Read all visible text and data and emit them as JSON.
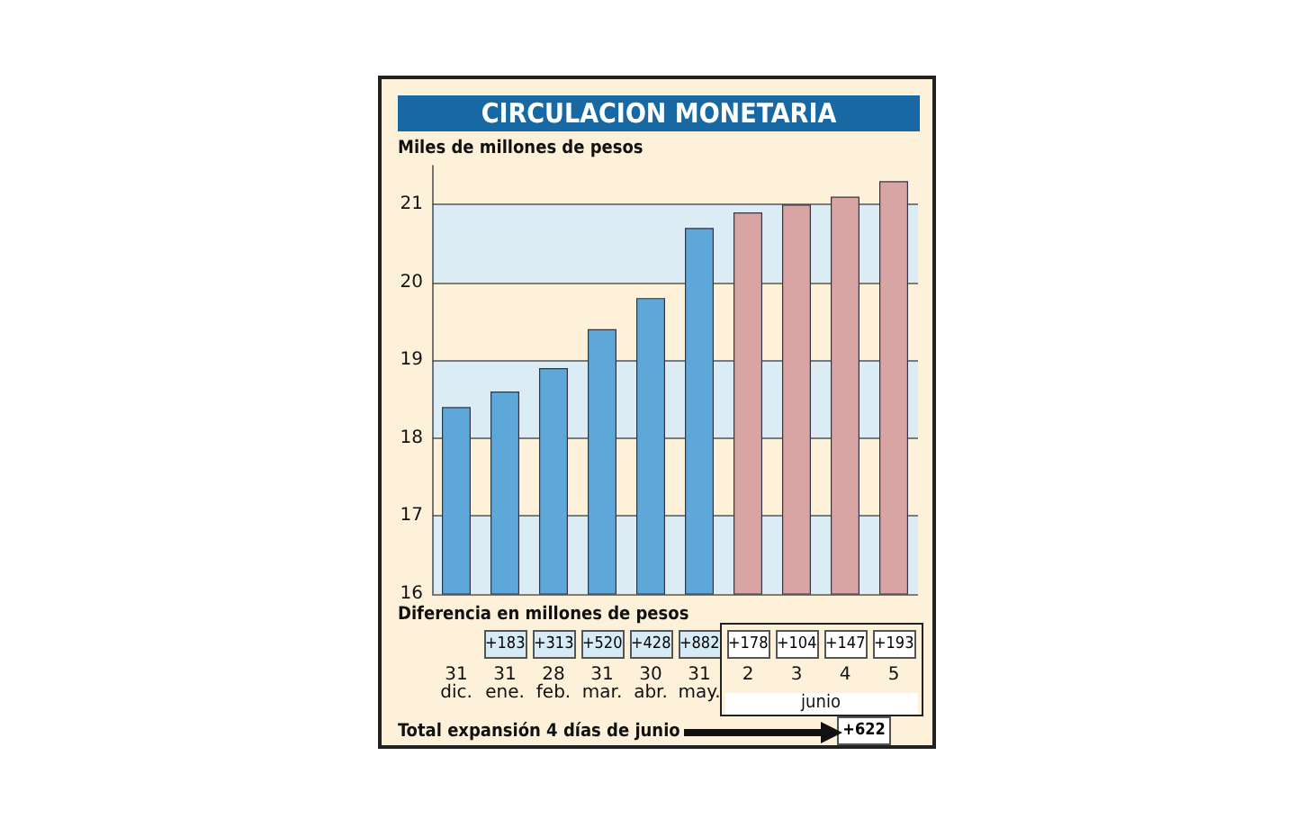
{
  "chart_data": {
    "type": "bar",
    "title": "CIRCULACION MONETARIA",
    "ylabel": "Miles de millones de pesos",
    "categories": [
      "31 dic.",
      "31 ene.",
      "28 feb.",
      "31 mar.",
      "30 abr.",
      "31 may.",
      "2",
      "3",
      "4",
      "5"
    ],
    "values": [
      18.4,
      18.6,
      18.9,
      19.4,
      19.8,
      20.7,
      20.9,
      21.0,
      21.1,
      21.3
    ],
    "colors": [
      "#5ea7d9",
      "#5ea7d9",
      "#5ea7d9",
      "#5ea7d9",
      "#5ea7d9",
      "#5ea7d9",
      "#d8a4a4",
      "#d8a4a4",
      "#d8a4a4",
      "#d8a4a4"
    ],
    "ylim": [
      16,
      21.5
    ],
    "yticks": [
      16,
      17,
      18,
      19,
      20,
      21
    ],
    "grid": "y",
    "annotations": [
      "Diferencia en millones de pesos",
      "+183",
      "+313",
      "+520",
      "+428",
      "+882",
      "+178",
      "+104",
      "+147",
      "+193",
      "junio",
      "Total expansión 4 días de junio",
      "+622"
    ]
  }
}
